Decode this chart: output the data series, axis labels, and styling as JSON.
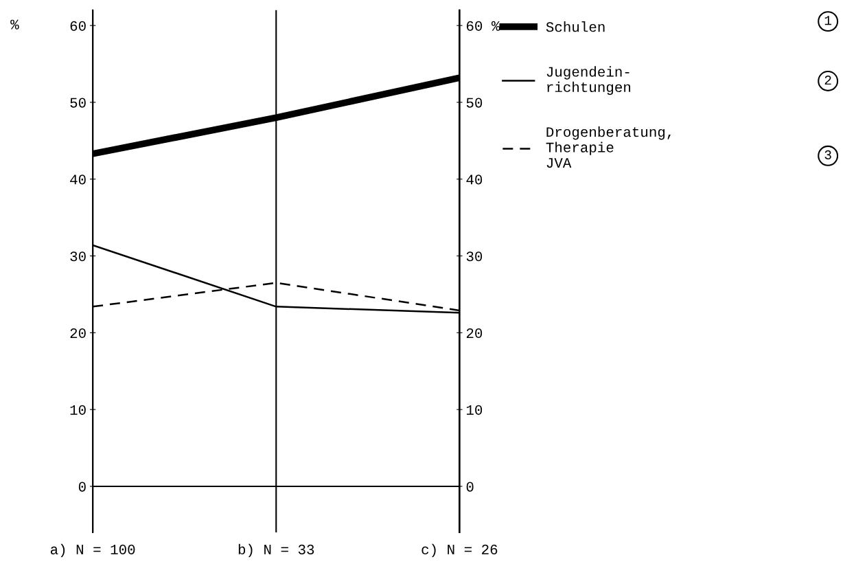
{
  "chart_data": {
    "type": "line",
    "ylabel": "%",
    "categories": [
      "a) N = 100",
      "b) N = 33",
      "c) N = 26"
    ],
    "series": [
      {
        "name": "Schulen",
        "color": "#000000",
        "line_style": "solid",
        "values": [
          43.3,
          48.0,
          53.2
        ]
      },
      {
        "name": "Jugendein-\nrichtungen",
        "color": "#000000",
        "line_style": "solid",
        "values": [
          31.4,
          23.4,
          22.6
        ]
      },
      {
        "name": "Drogenberatung,\nTherapie\nJVA",
        "color": "#000000",
        "line_style": "dashed",
        "values": [
          23.4,
          26.5,
          22.9
        ]
      }
    ],
    "ylim": [
      -6,
      62
    ],
    "yticks": [
      0,
      10,
      20,
      30,
      40,
      50,
      60
    ],
    "y2lim": [
      -6,
      62
    ],
    "y2ticks": [
      0,
      10,
      20,
      30,
      40,
      50,
      {
        "value": 60,
        "label": "60 %"
      }
    ],
    "ref_lines": [
      {
        "axis": "y",
        "value": 0,
        "color": "#000000"
      }
    ],
    "annotations": [
      "1",
      "2",
      "3"
    ],
    "grid": "x",
    "legend": "right",
    "marker": "none"
  }
}
